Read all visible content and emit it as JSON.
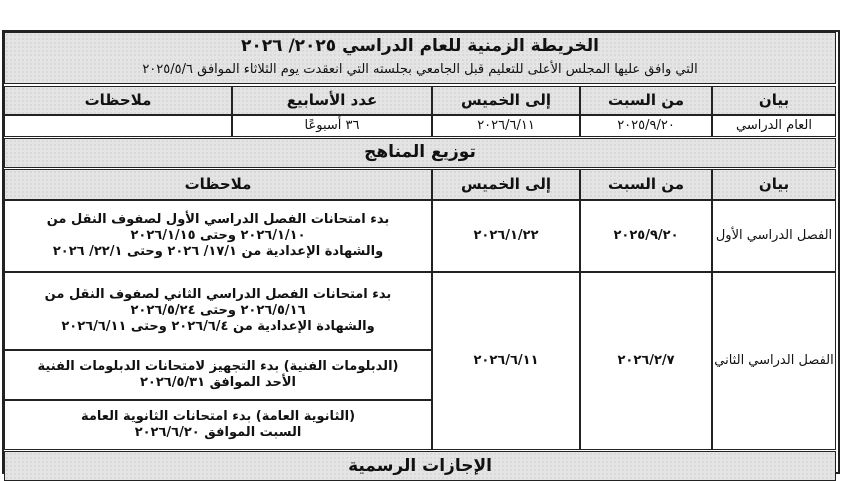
{
  "title": "الخريطة الزمنية للعام الدراسي ٢٠٢٥/ ٢٠٢٦",
  "subtitle": "التي وافق عليها المجلس الأعلى للتعليم قبل الجامعي بجلسته التي انعقدت يوم الثلاثاء الموافق ٢٠٢٥/٥/٦",
  "year_table": {
    "headers": [
      "بيان",
      "من السبت",
      "إلى الخميس",
      "عدد الأسابيع",
      "ملاحظات"
    ],
    "row": {
      "label": "العام الدراسي",
      "from": "٢٠٢٥/٩/٢٠",
      "to": "٢٠٢٦/٦/١١",
      "weeks": "٣٦ أسبوعًا",
      "notes": ""
    }
  },
  "curriculum": {
    "title": "توزيع المناهج",
    "headers": [
      "بيان",
      "من السبت",
      "إلى الخميس",
      "ملاحظات"
    ],
    "term1": {
      "label": "الفصل الدراسي الأول",
      "from": "٢٠٢٥/٩/٢٠",
      "to": "٢٠٢٦/١/٢٢",
      "notes": [
        "بدء امتحانات الفصل الدراسي الأول لصفوف النقل من",
        "٢٠٢٦/١/١٠ وحتى ٢٠٢٦/١/١٥",
        "والشهادة الإعدادية من ١٧/١/ ٢٠٢٦ وحتى ٢٢/١/ ٢٠٢٦"
      ]
    },
    "term2": {
      "label": "الفصل الدراسي الثاني",
      "from": "٢٠٢٦/٢/٧",
      "to": "٢٠٢٦/٦/١١",
      "notes": [
        "بدء امتحانات الفصل الدراسي الثاني لصفوف النقل من",
        "٢٠٢٦/٥/١٦ وحتى ٢٠٢٦/٥/٢٤",
        "والشهادة الإعدادية من ٢٠٢٦/٦/٤ وحتى ٢٠٢٦/٦/١١"
      ],
      "notes_diplomas": [
        "(الدبلومات الفنية) بدء التجهيز لامتحانات الدبلومات الفنية",
        "الأحد الموافق ٢٠٢٦/٥/٣١"
      ],
      "notes_secondary": [
        "(الثانوية العامة) بدء امتحانات الثانوية العامة",
        "السبت الموافق ٢٠٢٦/٦/٢٠"
      ]
    }
  },
  "holidays_title": "الإجازات الرسمية"
}
